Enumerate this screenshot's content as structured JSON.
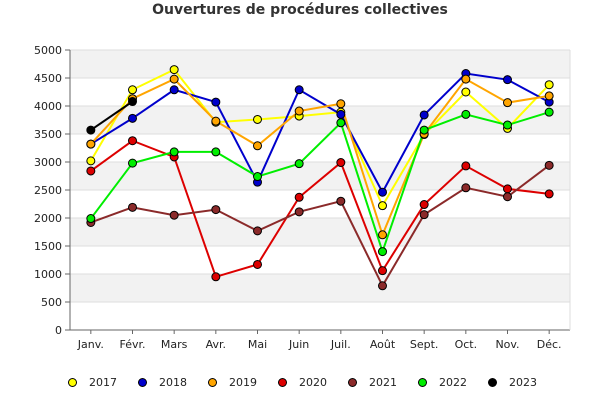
{
  "chart_data": {
    "type": "line",
    "title": "Ouvertures de procédures collectives",
    "xlabel": "",
    "ylabel": "",
    "categories": [
      "Janv.",
      "Févr.",
      "Mars",
      "Avr.",
      "Mai",
      "Juin",
      "Juil.",
      "Août",
      "Sept.",
      "Oct.",
      "Nov.",
      "Déc."
    ],
    "ylim": [
      0,
      5000
    ],
    "yticks": [
      0,
      500,
      1000,
      1500,
      2000,
      2500,
      3000,
      3500,
      4000,
      4500,
      5000
    ],
    "grid": true,
    "legend_position": "bottom",
    "series": [
      {
        "name": "2017",
        "color": "#ffff00",
        "values": [
          3020,
          4290,
          4650,
          3710,
          3760,
          3820,
          3890,
          2220,
          3490,
          4250,
          3600,
          4380
        ]
      },
      {
        "name": "2018",
        "color": "#0000cc",
        "values": [
          3320,
          3780,
          4290,
          4070,
          2640,
          4290,
          3850,
          2460,
          3840,
          4580,
          4470,
          4070
        ]
      },
      {
        "name": "2019",
        "color": "#ffa500",
        "values": [
          3320,
          4130,
          4480,
          3730,
          3290,
          3910,
          4040,
          1700,
          3500,
          4480,
          4060,
          4180
        ]
      },
      {
        "name": "2020",
        "color": "#dd0000",
        "values": [
          2840,
          3380,
          3090,
          950,
          1170,
          2370,
          2990,
          1060,
          2240,
          2930,
          2520,
          2430
        ]
      },
      {
        "name": "2021",
        "color": "#8b2a2a",
        "values": [
          1920,
          2190,
          2050,
          2150,
          1770,
          2110,
          2300,
          790,
          2060,
          2540,
          2380,
          2940
        ]
      },
      {
        "name": "2022",
        "color": "#00ee00",
        "values": [
          1990,
          2980,
          3180,
          3180,
          2740,
          2970,
          3700,
          1400,
          3570,
          3850,
          3660,
          3890
        ]
      },
      {
        "name": "2023",
        "color": "#000000",
        "values": [
          3570,
          4080,
          null,
          null,
          null,
          null,
          null,
          null,
          null,
          null,
          null,
          null
        ]
      }
    ]
  }
}
